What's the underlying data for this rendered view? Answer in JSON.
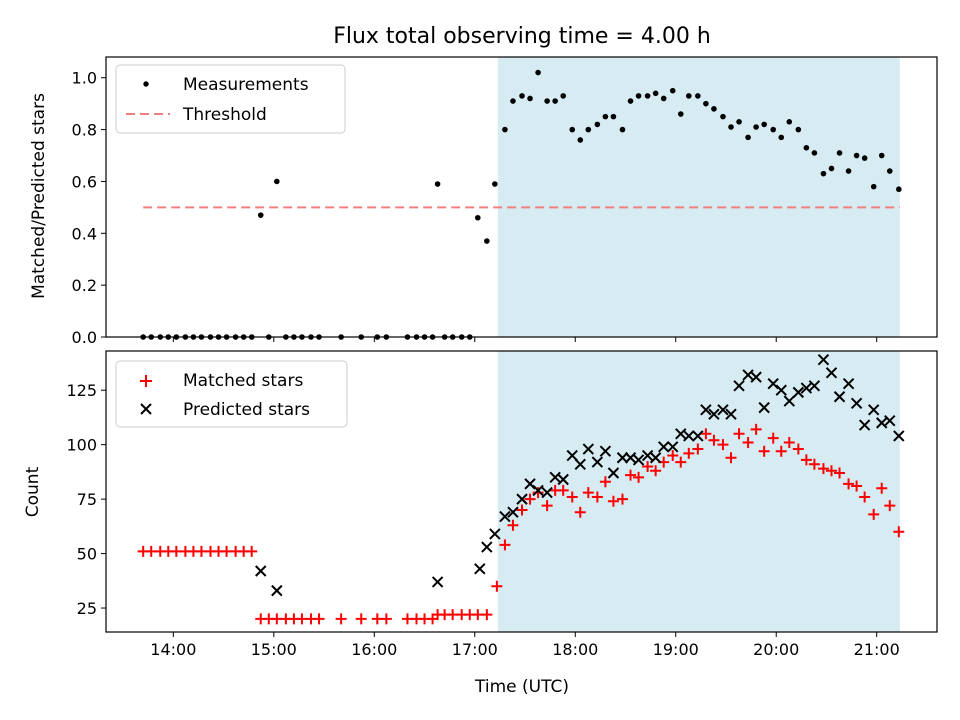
{
  "chart_data": [
    {
      "type": "scatter",
      "title": "Flux total observing time = 4.00 h",
      "xlabel": "",
      "ylabel": "Matched/Predicted stars",
      "xlim": [
        13.33,
        21.6
      ],
      "ylim": [
        0,
        1.08
      ],
      "x_ticks": [
        "14:00",
        "15:00",
        "16:00",
        "17:00",
        "18:00",
        "19:00",
        "20:00",
        "21:00"
      ],
      "y_ticks": [
        "0.0",
        "0.2",
        "0.4",
        "0.6",
        "0.8",
        "1.0"
      ],
      "legend_position": "upper-left",
      "shaded_region": {
        "x": [
          17.23,
          21.23
        ],
        "color": "#add8e6"
      },
      "threshold": {
        "name": "Threshold",
        "value": 0.5,
        "x": [
          13.7,
          21.23
        ],
        "color": "#f08080"
      },
      "series": [
        {
          "name": "Measurements",
          "color": "#000000",
          "marker": "dot",
          "x": [
            13.7,
            13.78,
            13.87,
            13.95,
            14.03,
            14.12,
            14.2,
            14.28,
            14.37,
            14.45,
            14.53,
            14.62,
            14.7,
            14.78,
            14.87,
            14.95,
            15.03,
            15.12,
            15.2,
            15.28,
            15.37,
            15.45,
            15.67,
            15.87,
            16.03,
            16.12,
            16.33,
            16.42,
            16.5,
            16.58,
            16.63,
            16.7,
            16.78,
            16.87,
            16.95,
            17.03,
            17.12,
            17.2,
            17.3,
            17.38,
            17.47,
            17.55,
            17.63,
            17.72,
            17.8,
            17.88,
            17.97,
            18.05,
            18.13,
            18.22,
            18.3,
            18.38,
            18.47,
            18.55,
            18.63,
            18.72,
            18.8,
            18.88,
            18.97,
            19.05,
            19.13,
            19.22,
            19.3,
            19.38,
            19.47,
            19.55,
            19.63,
            19.72,
            19.8,
            19.88,
            19.97,
            20.05,
            20.13,
            20.22,
            20.3,
            20.38,
            20.47,
            20.55,
            20.63,
            20.72,
            20.8,
            20.88,
            20.97,
            21.05,
            21.13,
            21.22
          ],
          "y": [
            0,
            0,
            0,
            0,
            0,
            0,
            0,
            0,
            0,
            0,
            0,
            0,
            0,
            0,
            0.47,
            0,
            0.6,
            0,
            0,
            0,
            0,
            0,
            0,
            0,
            0,
            0,
            0,
            0,
            0,
            0,
            0.59,
            0,
            0,
            0,
            0,
            0.46,
            0.37,
            0.59,
            0.8,
            0.91,
            0.93,
            0.92,
            1.02,
            0.91,
            0.91,
            0.93,
            0.8,
            0.76,
            0.8,
            0.82,
            0.85,
            0.85,
            0.8,
            0.91,
            0.93,
            0.93,
            0.94,
            0.92,
            0.95,
            0.86,
            0.93,
            0.93,
            0.9,
            0.88,
            0.85,
            0.81,
            0.83,
            0.77,
            0.81,
            0.82,
            0.8,
            0.77,
            0.83,
            0.8,
            0.73,
            0.71,
            0.63,
            0.65,
            0.71,
            0.64,
            0.7,
            0.69,
            0.58,
            0.7,
            0.64,
            0.57
          ]
        }
      ]
    },
    {
      "type": "scatter",
      "title": "",
      "xlabel": "Time (UTC)",
      "ylabel": "Count",
      "xlim": [
        13.33,
        21.6
      ],
      "ylim": [
        14,
        143
      ],
      "x_ticks": [
        "14:00",
        "15:00",
        "16:00",
        "17:00",
        "18:00",
        "19:00",
        "20:00",
        "21:00"
      ],
      "y_ticks": [
        "25",
        "50",
        "75",
        "100",
        "125"
      ],
      "legend_position": "upper-left",
      "shaded_region": {
        "x": [
          17.23,
          21.23
        ],
        "color": "#add8e6"
      },
      "series": [
        {
          "name": "Matched stars",
          "color": "#ff0000",
          "marker": "plus",
          "x": [
            13.7,
            13.78,
            13.87,
            13.95,
            14.03,
            14.12,
            14.2,
            14.28,
            14.37,
            14.45,
            14.53,
            14.62,
            14.7,
            14.78,
            14.87,
            14.95,
            15.03,
            15.12,
            15.2,
            15.28,
            15.37,
            15.45,
            15.67,
            15.87,
            16.03,
            16.12,
            16.33,
            16.42,
            16.5,
            16.58,
            16.63,
            16.7,
            16.78,
            16.87,
            16.95,
            17.03,
            17.12,
            17.22,
            17.3,
            17.38,
            17.47,
            17.55,
            17.63,
            17.72,
            17.8,
            17.88,
            17.97,
            18.05,
            18.13,
            18.22,
            18.3,
            18.38,
            18.47,
            18.55,
            18.63,
            18.72,
            18.8,
            18.88,
            18.97,
            19.05,
            19.13,
            19.22,
            19.3,
            19.38,
            19.47,
            19.55,
            19.63,
            19.72,
            19.8,
            19.88,
            19.97,
            20.05,
            20.13,
            20.22,
            20.3,
            20.38,
            20.47,
            20.55,
            20.63,
            20.72,
            20.8,
            20.88,
            20.97,
            21.05,
            21.13,
            21.22
          ],
          "y": [
            51,
            51,
            51,
            51,
            51,
            51,
            51,
            51,
            51,
            51,
            51,
            51,
            51,
            51,
            20,
            20,
            20,
            20,
            20,
            20,
            20,
            20,
            20,
            20,
            20,
            20,
            20,
            20,
            20,
            20,
            22,
            22,
            22,
            22,
            22,
            22,
            22,
            35,
            54,
            63,
            70,
            75,
            78,
            72,
            79,
            79,
            76,
            69,
            78,
            76,
            83,
            74,
            75,
            86,
            85,
            90,
            88,
            92,
            95,
            92,
            96,
            98,
            105,
            102,
            100,
            94,
            105,
            101,
            107,
            97,
            103,
            97,
            101,
            98,
            93,
            91,
            89,
            88,
            87,
            82,
            81,
            76,
            68,
            80,
            72,
            60
          ]
        },
        {
          "name": "Predicted stars",
          "color": "#000000",
          "marker": "cross",
          "x": [
            14.87,
            15.03,
            16.63,
            17.05,
            17.12,
            17.2,
            17.3,
            17.38,
            17.47,
            17.55,
            17.63,
            17.72,
            17.8,
            17.88,
            17.97,
            18.05,
            18.13,
            18.22,
            18.3,
            18.38,
            18.47,
            18.55,
            18.63,
            18.72,
            18.8,
            18.88,
            18.97,
            19.05,
            19.13,
            19.22,
            19.3,
            19.38,
            19.47,
            19.55,
            19.63,
            19.72,
            19.8,
            19.88,
            19.97,
            20.05,
            20.13,
            20.22,
            20.3,
            20.38,
            20.47,
            20.55,
            20.63,
            20.72,
            20.8,
            20.88,
            20.97,
            21.05,
            21.13,
            21.22
          ],
          "y": [
            42,
            33,
            37,
            43,
            53,
            59,
            67,
            69,
            75,
            82,
            79,
            78,
            85,
            84,
            95,
            91,
            98,
            92,
            97,
            87,
            94,
            94,
            93,
            95,
            94,
            99,
            99,
            105,
            104,
            104,
            116,
            114,
            116,
            114,
            127,
            132,
            131,
            117,
            128,
            125,
            120,
            124,
            126,
            127,
            139,
            133,
            122,
            128,
            119,
            109,
            116,
            110,
            111,
            104
          ]
        }
      ]
    }
  ]
}
